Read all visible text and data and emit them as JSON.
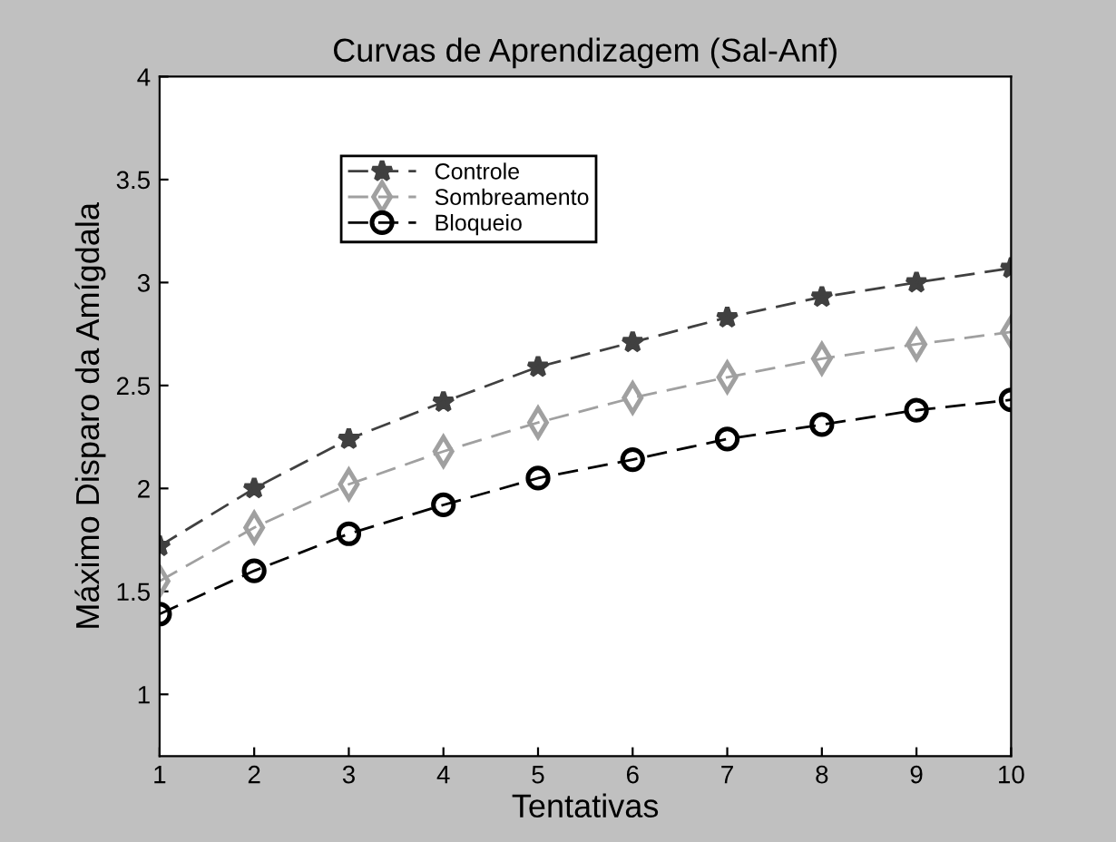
{
  "chart_data": {
    "type": "line",
    "title": "Curvas de Aprendizagem (Sal-Anf)",
    "xlabel": "Tentativas",
    "ylabel": "Máximo Disparo da Amígdala",
    "x": [
      1,
      2,
      3,
      4,
      5,
      6,
      7,
      8,
      9,
      10
    ],
    "series": [
      {
        "name": "Controle",
        "color": "#404040",
        "marker": "star",
        "values": [
          1.72,
          2.0,
          2.24,
          2.42,
          2.59,
          2.71,
          2.83,
          2.93,
          3.0,
          3.07
        ]
      },
      {
        "name": "Sombreamento",
        "color": "#a0a0a0",
        "marker": "diamond",
        "values": [
          1.55,
          1.81,
          2.02,
          2.18,
          2.32,
          2.44,
          2.54,
          2.63,
          2.7,
          2.76
        ]
      },
      {
        "name": "Bloqueio",
        "color": "#000000",
        "marker": "circle",
        "values": [
          1.39,
          1.6,
          1.78,
          1.92,
          2.05,
          2.14,
          2.24,
          2.31,
          2.38,
          2.43
        ]
      }
    ],
    "xlim": [
      1,
      10
    ],
    "xticks": [
      1,
      2,
      3,
      4,
      5,
      6,
      7,
      8,
      9,
      10
    ],
    "ylim": [
      0.7,
      4
    ],
    "yticks": [
      1,
      1.5,
      2,
      2.5,
      3,
      3.5,
      4
    ],
    "line_style": "dashed",
    "grid": false,
    "legend": "top left"
  }
}
